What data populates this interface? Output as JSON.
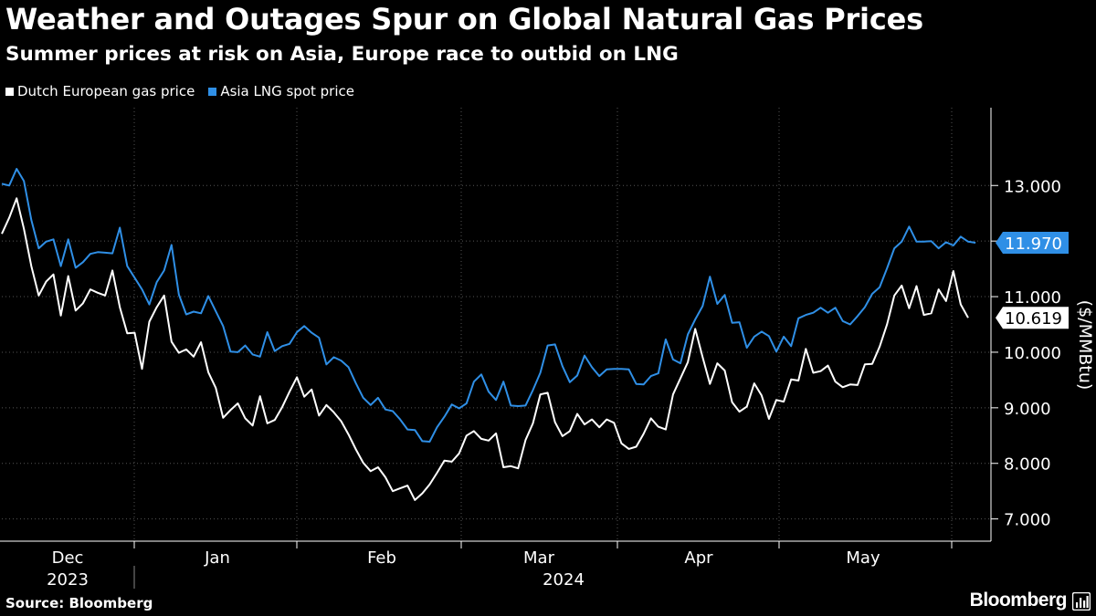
{
  "header": {
    "title": "Weather and Outages Spur on Global Natural Gas Prices",
    "subtitle": "Summer prices at risk on Asia, Europe race to outbid on LNG"
  },
  "footer": {
    "source": "Source: Bloomberg",
    "brand": "Bloomberg"
  },
  "colors": {
    "background": "#000000",
    "dutch_series": "#ffffff",
    "asia_series": "#2f8fe6",
    "grid": "#555555",
    "axis": "#ffffff"
  },
  "chart_data": {
    "type": "line",
    "title": "Weather and Outages Spur on Global Natural Gas Prices",
    "subtitle": "Summer prices at risk on Asia, Europe race to outbid on LNG",
    "ylabel": "($/MMBtu)",
    "ylim": [
      6.6,
      14.4
    ],
    "y_ticks": [
      7.0,
      8.0,
      9.0,
      10.0,
      11.0,
      12.0,
      13.0
    ],
    "y_tick_labels": [
      "7.000",
      "8.000",
      "9.000",
      "10.000",
      "11.000",
      "12.000",
      "13.000"
    ],
    "x_ticks": [
      {
        "label": "Dec",
        "year": "2023"
      },
      {
        "label": "Jan",
        "year": ""
      },
      {
        "label": "Feb",
        "year": "2024"
      },
      {
        "label": "Mar",
        "year": ""
      },
      {
        "label": "Apr",
        "year": ""
      },
      {
        "label": "May",
        "year": ""
      }
    ],
    "grid": true,
    "legend": "top-left",
    "series": [
      {
        "name": "Dutch European gas price",
        "color": "#ffffff",
        "last_label": "10.619",
        "values": [
          12.13,
          12.42,
          12.77,
          12.22,
          11.55,
          11.02,
          11.27,
          11.4,
          10.66,
          11.37,
          10.75,
          10.88,
          11.13,
          11.07,
          11.02,
          11.47,
          10.81,
          10.34,
          10.35,
          9.7,
          10.55,
          10.81,
          11.02,
          10.19,
          9.99,
          10.05,
          9.92,
          10.18,
          9.64,
          9.36,
          8.82,
          8.96,
          9.08,
          8.81,
          8.68,
          9.21,
          8.72,
          8.78,
          9.01,
          9.29,
          9.55,
          9.2,
          9.33,
          8.86,
          9.05,
          8.92,
          8.76,
          8.52,
          8.25,
          8.01,
          7.86,
          7.93,
          7.75,
          7.5,
          7.55,
          7.6,
          7.34,
          7.46,
          7.62,
          7.83,
          8.05,
          8.03,
          8.18,
          8.5,
          8.58,
          8.44,
          8.41,
          8.54,
          7.93,
          7.95,
          7.91,
          8.42,
          8.72,
          9.24,
          9.27,
          8.74,
          8.49,
          8.58,
          8.89,
          8.7,
          8.79,
          8.65,
          8.79,
          8.73,
          8.36,
          8.26,
          8.3,
          8.53,
          8.81,
          8.66,
          8.61,
          9.24,
          9.53,
          9.82,
          10.42,
          9.91,
          9.43,
          9.8,
          9.67,
          9.1,
          8.93,
          9.02,
          9.44,
          9.22,
          8.8,
          9.14,
          9.11,
          9.51,
          9.49,
          10.06,
          9.63,
          9.66,
          9.76,
          9.47,
          9.37,
          9.42,
          9.41,
          9.78,
          9.79,
          10.1,
          10.5,
          11.02,
          11.2,
          10.79,
          11.19,
          10.67,
          10.7,
          11.13,
          10.92,
          11.46,
          10.86,
          10.62
        ]
      },
      {
        "name": "Asia LNG spot price",
        "color": "#2f8fe6",
        "last_label": "11.970",
        "values": [
          13.03,
          13.0,
          13.3,
          13.08,
          12.38,
          11.87,
          11.99,
          12.03,
          11.55,
          12.03,
          11.52,
          11.62,
          11.77,
          11.8,
          11.79,
          11.78,
          12.24,
          11.55,
          11.34,
          11.13,
          10.86,
          11.26,
          11.47,
          11.93,
          11.04,
          10.68,
          10.73,
          10.7,
          11.01,
          10.74,
          10.47,
          10.01,
          10.0,
          10.12,
          9.96,
          9.92,
          10.36,
          10.02,
          10.11,
          10.15,
          10.36,
          10.47,
          10.35,
          10.26,
          9.78,
          9.91,
          9.85,
          9.73,
          9.44,
          9.18,
          9.05,
          9.18,
          8.97,
          8.94,
          8.79,
          8.61,
          8.6,
          8.4,
          8.39,
          8.65,
          8.84,
          9.06,
          8.99,
          9.08,
          9.47,
          9.6,
          9.29,
          9.14,
          9.47,
          9.04,
          9.03,
          9.04,
          9.32,
          9.63,
          10.12,
          10.14,
          9.75,
          9.46,
          9.58,
          9.94,
          9.73,
          9.57,
          9.69,
          9.7,
          9.7,
          9.69,
          9.43,
          9.42,
          9.57,
          9.62,
          10.23,
          9.87,
          9.8,
          10.32,
          10.59,
          10.83,
          11.36,
          10.87,
          11.03,
          10.53,
          10.54,
          10.08,
          10.28,
          10.37,
          10.29,
          10.01,
          10.28,
          10.11,
          10.61,
          10.67,
          10.71,
          10.8,
          10.71,
          10.8,
          10.56,
          10.5,
          10.65,
          10.81,
          11.05,
          11.17,
          11.51,
          11.87,
          11.99,
          12.26,
          11.99,
          11.99,
          12.0,
          11.87,
          11.98,
          11.92,
          12.08,
          11.99,
          11.97
        ]
      }
    ]
  }
}
